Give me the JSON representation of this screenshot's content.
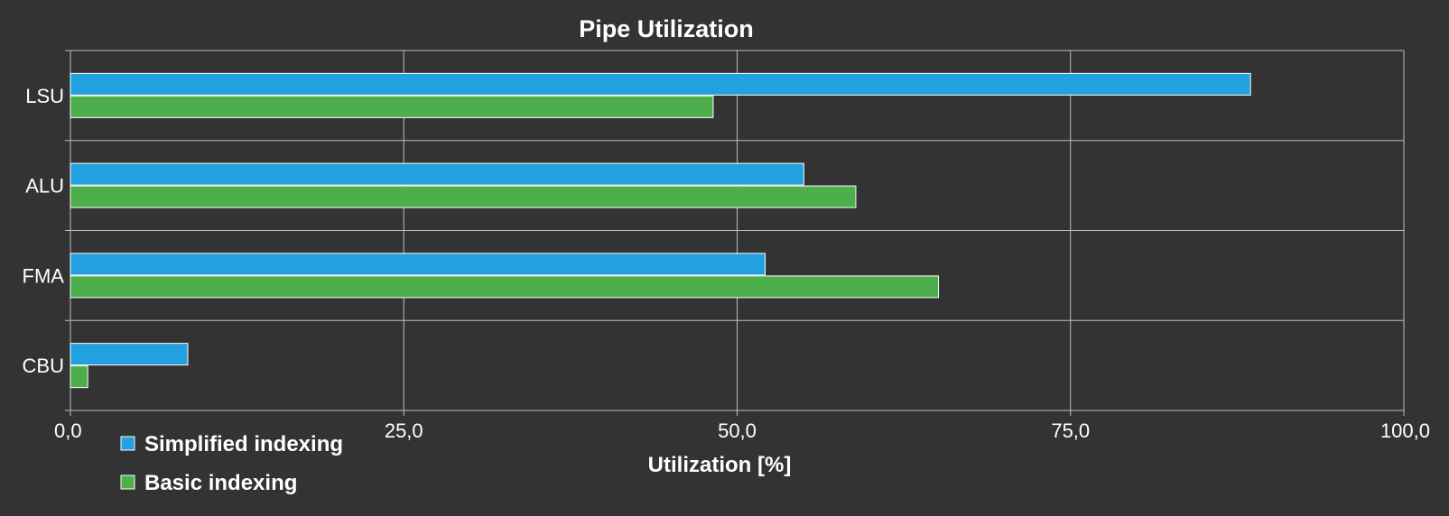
{
  "chart_data": {
    "type": "bar",
    "orientation": "horizontal",
    "title": "Pipe Utilization",
    "xlabel": "Utilization [%]",
    "ylabel": "",
    "categories": [
      "LSU",
      "ALU",
      "FMA",
      "CBU"
    ],
    "series": [
      {
        "name": "Simplified indexing",
        "color": "#22a0df",
        "values": [
          88.5,
          55.0,
          52.1,
          8.8
        ]
      },
      {
        "name": "Basic indexing",
        "color": "#4caf4c",
        "values": [
          48.2,
          58.9,
          65.1,
          1.3
        ]
      }
    ],
    "xlim": [
      0,
      100
    ],
    "xticks": [
      0,
      25,
      50,
      75,
      100
    ],
    "xtick_labels": [
      "0,0",
      "25,0",
      "50,0",
      "75,0",
      "100,0"
    ],
    "grid": true,
    "legend_position": "bottom-left"
  },
  "colors": {
    "background": "#333333",
    "grid": "#bdbdbd",
    "text": "#ffffff"
  }
}
